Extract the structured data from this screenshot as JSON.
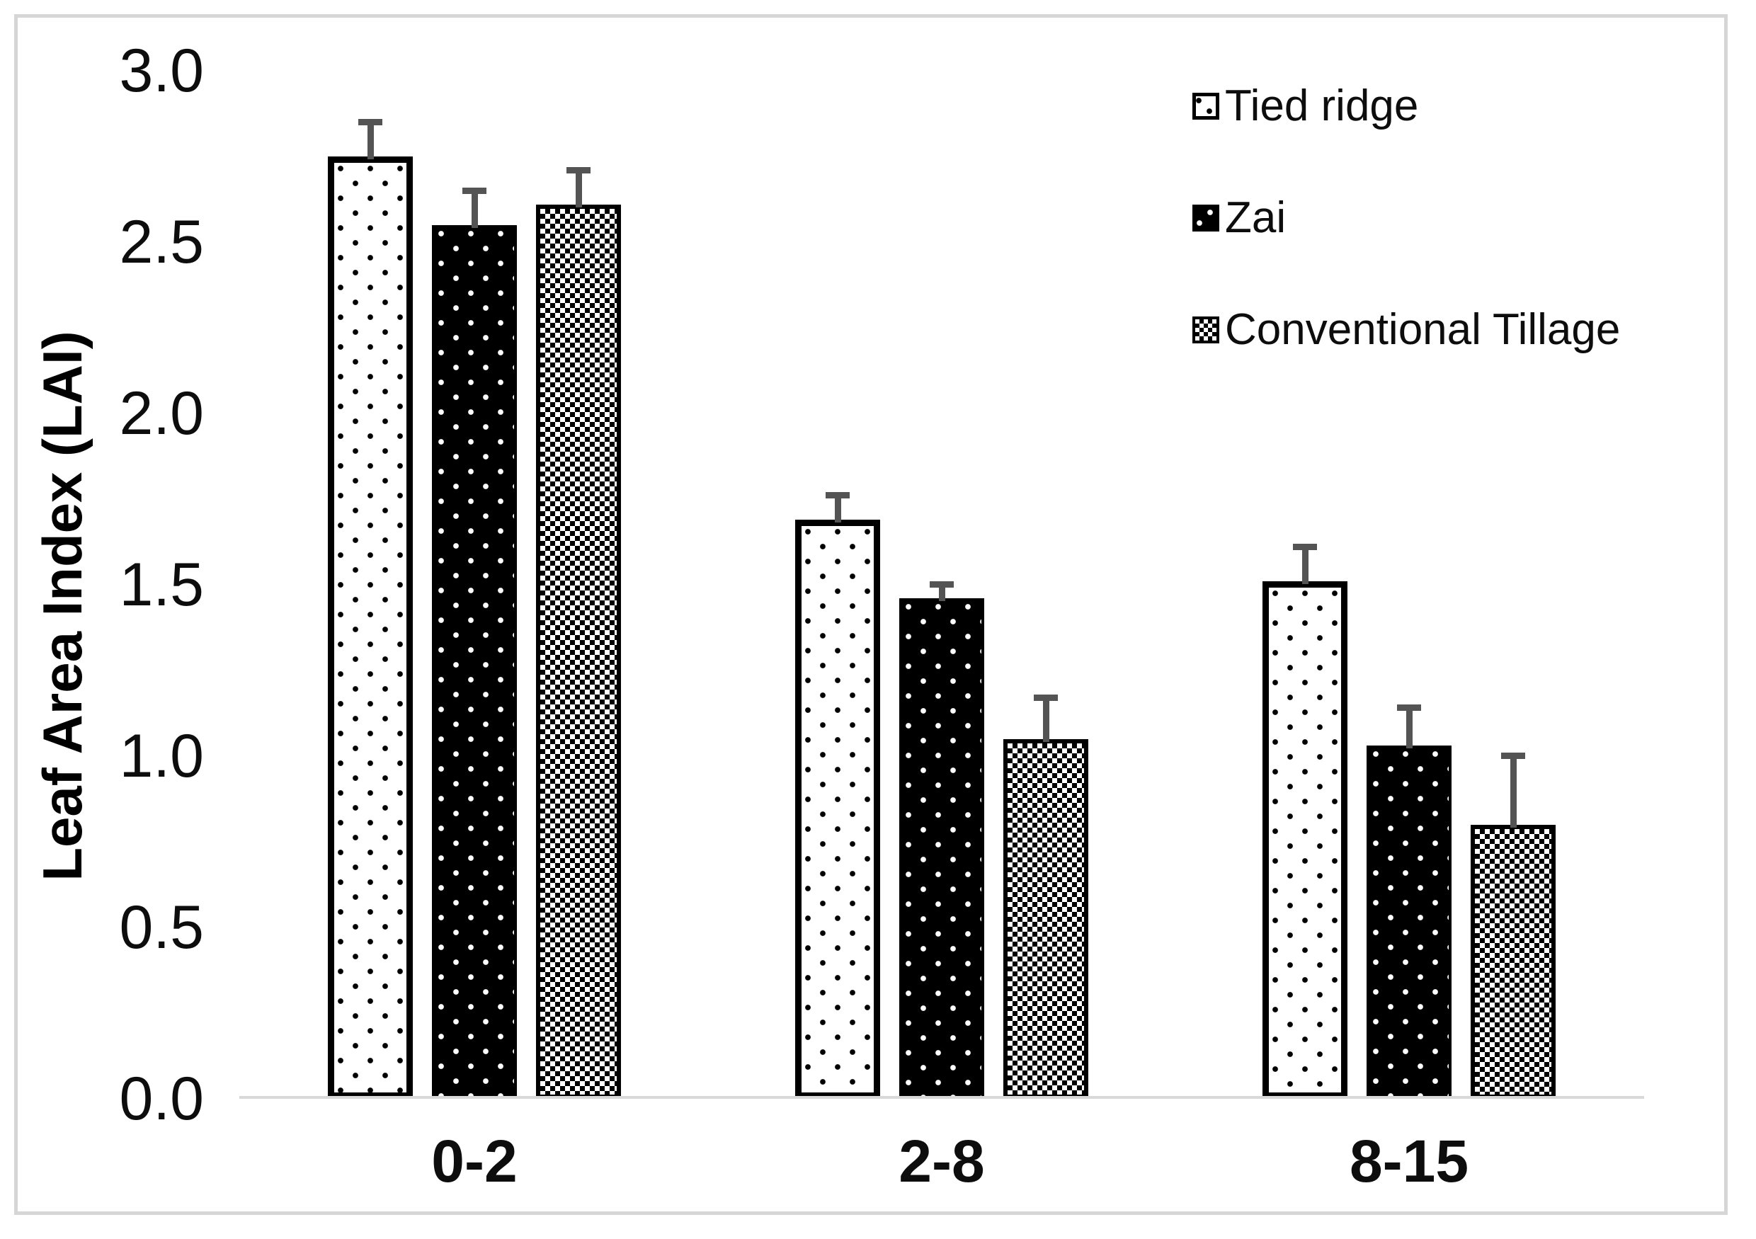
{
  "chart_data": {
    "type": "bar",
    "title": "",
    "xlabel": "",
    "ylabel": "Leaf Area Index (LAI)",
    "ylim": [
      0.0,
      3.0
    ],
    "ytick_step": 0.5,
    "ytick_labels": [
      "0.0",
      "0.5",
      "1.0",
      "1.5",
      "2.0",
      "2.5",
      "3.0"
    ],
    "categories": [
      "0-2",
      "2-8",
      "8-15"
    ],
    "grid": false,
    "legend_position": "top-right",
    "error_bars": {
      "direction": "plus",
      "caps": true
    },
    "series": [
      {
        "name": "Tied ridge",
        "pattern": "dots-black-on-white",
        "values": [
          2.75,
          1.69,
          1.51
        ],
        "errors": [
          0.11,
          0.08,
          0.11
        ]
      },
      {
        "name": "Zai",
        "pattern": "dots-white-on-black",
        "values": [
          2.55,
          1.46,
          1.03
        ],
        "errors": [
          0.11,
          0.05,
          0.12
        ]
      },
      {
        "name": "Conventional Tillage",
        "pattern": "checker",
        "values": [
          2.61,
          1.05,
          0.8
        ],
        "errors": [
          0.11,
          0.13,
          0.21
        ]
      }
    ]
  },
  "colors": {
    "bar_fill_dark": "#000000",
    "bar_fill_light": "#ffffff",
    "error_bar": "#545454",
    "axis_line": "#d9d9d9",
    "figure_border": "#d6d6d6",
    "text": "#0d0d0d"
  }
}
